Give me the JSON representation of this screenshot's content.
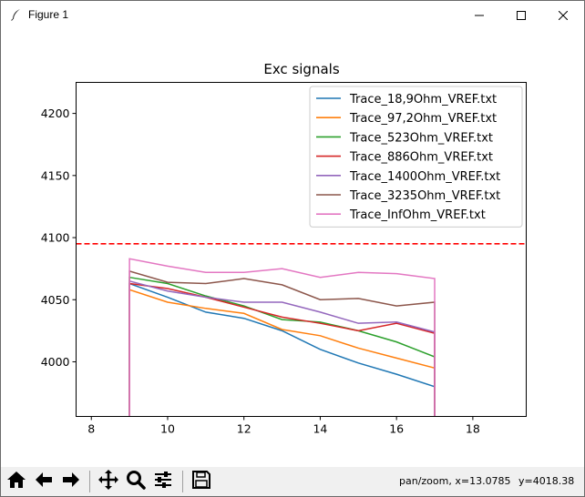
{
  "window": {
    "title": "Figure 1"
  },
  "status": {
    "mode": "pan/zoom, x=13.0785",
    "y_readout": "y=4018.38"
  },
  "toolbar": {
    "icons": [
      "home-icon",
      "back-arrow-icon",
      "forward-arrow-icon",
      "pan-icon",
      "zoom-icon",
      "configure-subplots-icon",
      "save-icon"
    ]
  },
  "chart_data": {
    "type": "line",
    "title": "Exc signals",
    "xlabel": "",
    "ylabel": "",
    "xlim": [
      7.6,
      19.4
    ],
    "ylim": [
      3956,
      4225
    ],
    "xticks": [
      "8",
      "10",
      "12",
      "14",
      "16",
      "18"
    ],
    "yticks": [
      "4000",
      "4050",
      "4100",
      "4150",
      "4200"
    ],
    "grid": false,
    "legend_position": "top-right",
    "reference_line": {
      "y": 4095,
      "color": "#ff0000",
      "style": "dashed"
    },
    "x": [
      9,
      10,
      11,
      12,
      13,
      14,
      15,
      16,
      17
    ],
    "series": [
      {
        "name": "Trace_18,9Ohm_VREF.txt",
        "color": "#1f77b4",
        "values": [
          4063,
          4052,
          4040,
          4035,
          4025,
          4010,
          3999,
          3990,
          3980
        ]
      },
      {
        "name": "Trace_97,2Ohm_VREF.txt",
        "color": "#ff7f0e",
        "values": [
          4058,
          4048,
          4043,
          4039,
          4026,
          4021,
          4011,
          4003,
          3995
        ]
      },
      {
        "name": "Trace_523Ohm_VREF.txt",
        "color": "#2ca02c",
        "values": [
          4068,
          4063,
          4053,
          4045,
          4034,
          4032,
          4025,
          4016,
          4004
        ]
      },
      {
        "name": "Trace_886Ohm_VREF.txt",
        "color": "#d62728",
        "values": [
          4063,
          4059,
          4052,
          4044,
          4036,
          4031,
          4025,
          4031,
          4023
        ]
      },
      {
        "name": "Trace_1400Ohm_VREF.txt",
        "color": "#9467bd",
        "values": [
          4065,
          4057,
          4052,
          4048,
          4048,
          4040,
          4031,
          4032,
          4024
        ]
      },
      {
        "name": "Trace_3235Ohm_VREF.txt",
        "color": "#8c564b",
        "values": [
          4073,
          4064,
          4063,
          4067,
          4062,
          4050,
          4051,
          4045,
          4048
        ]
      },
      {
        "name": "Trace_InfOhm_VREF.txt",
        "color": "#e377c2",
        "values": [
          4083,
          4077,
          4072,
          4072,
          4075,
          4068,
          4072,
          4071,
          4067
        ]
      }
    ]
  }
}
